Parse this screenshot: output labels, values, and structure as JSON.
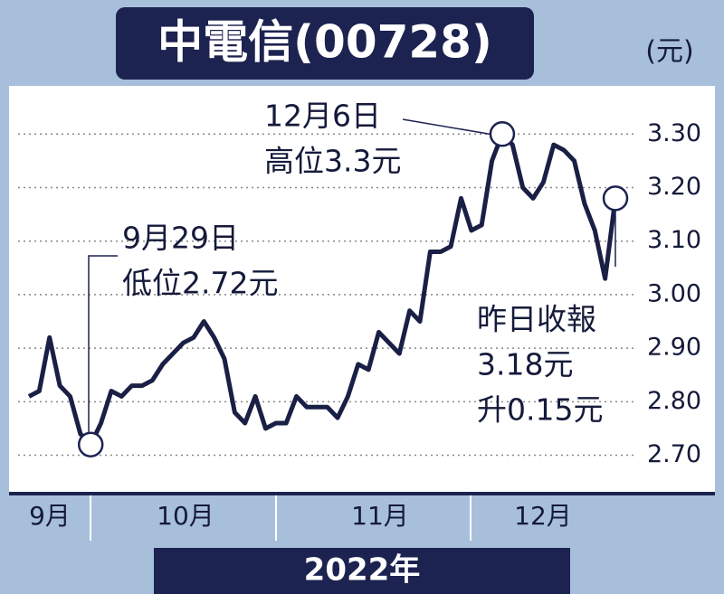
{
  "chart_data": {
    "type": "line",
    "title": "中電信(00728)",
    "unit": "(元)",
    "x_label": "2022年",
    "month_labels": [
      "9月",
      "10月",
      "11月",
      "12月"
    ],
    "series": [
      {
        "color": "#1a1f45",
        "values": [
          2.81,
          2.82,
          2.92,
          2.83,
          2.81,
          2.74,
          2.72,
          2.76,
          2.82,
          2.81,
          2.83,
          2.83,
          2.84,
          2.87,
          2.89,
          2.91,
          2.92,
          2.95,
          2.92,
          2.88,
          2.78,
          2.76,
          2.81,
          2.75,
          2.76,
          2.76,
          2.81,
          2.79,
          2.79,
          2.79,
          2.77,
          2.81,
          2.87,
          2.86,
          2.93,
          2.91,
          2.89,
          2.97,
          2.95,
          3.08,
          3.08,
          3.09,
          3.18,
          3.12,
          3.13,
          3.25,
          3.3,
          3.28,
          3.2,
          3.18,
          3.21,
          3.28,
          3.27,
          3.25,
          3.17,
          3.12,
          3.03,
          3.18
        ]
      }
    ],
    "ylim": [
      2.63,
      3.39
    ],
    "yticks": [
      {
        "value": 2.7,
        "label": "2.70"
      },
      {
        "value": 2.8,
        "label": "2.80"
      },
      {
        "value": 2.9,
        "label": "2.90"
      },
      {
        "value": 3.0,
        "label": "3.00"
      },
      {
        "value": 3.1,
        "label": "3.10"
      },
      {
        "value": 3.2,
        "label": "3.20"
      },
      {
        "value": 3.3,
        "label": "3.30"
      }
    ],
    "grid": true,
    "annotations": [
      {
        "lines": [
          "12月6日",
          "高位3.3元"
        ],
        "index": 46
      },
      {
        "lines": [
          "9月29日",
          "低位2.72元"
        ],
        "index": 6
      },
      {
        "lines": [
          "昨日收報",
          "3.18元",
          "升0.15元"
        ],
        "index": 57
      }
    ]
  }
}
